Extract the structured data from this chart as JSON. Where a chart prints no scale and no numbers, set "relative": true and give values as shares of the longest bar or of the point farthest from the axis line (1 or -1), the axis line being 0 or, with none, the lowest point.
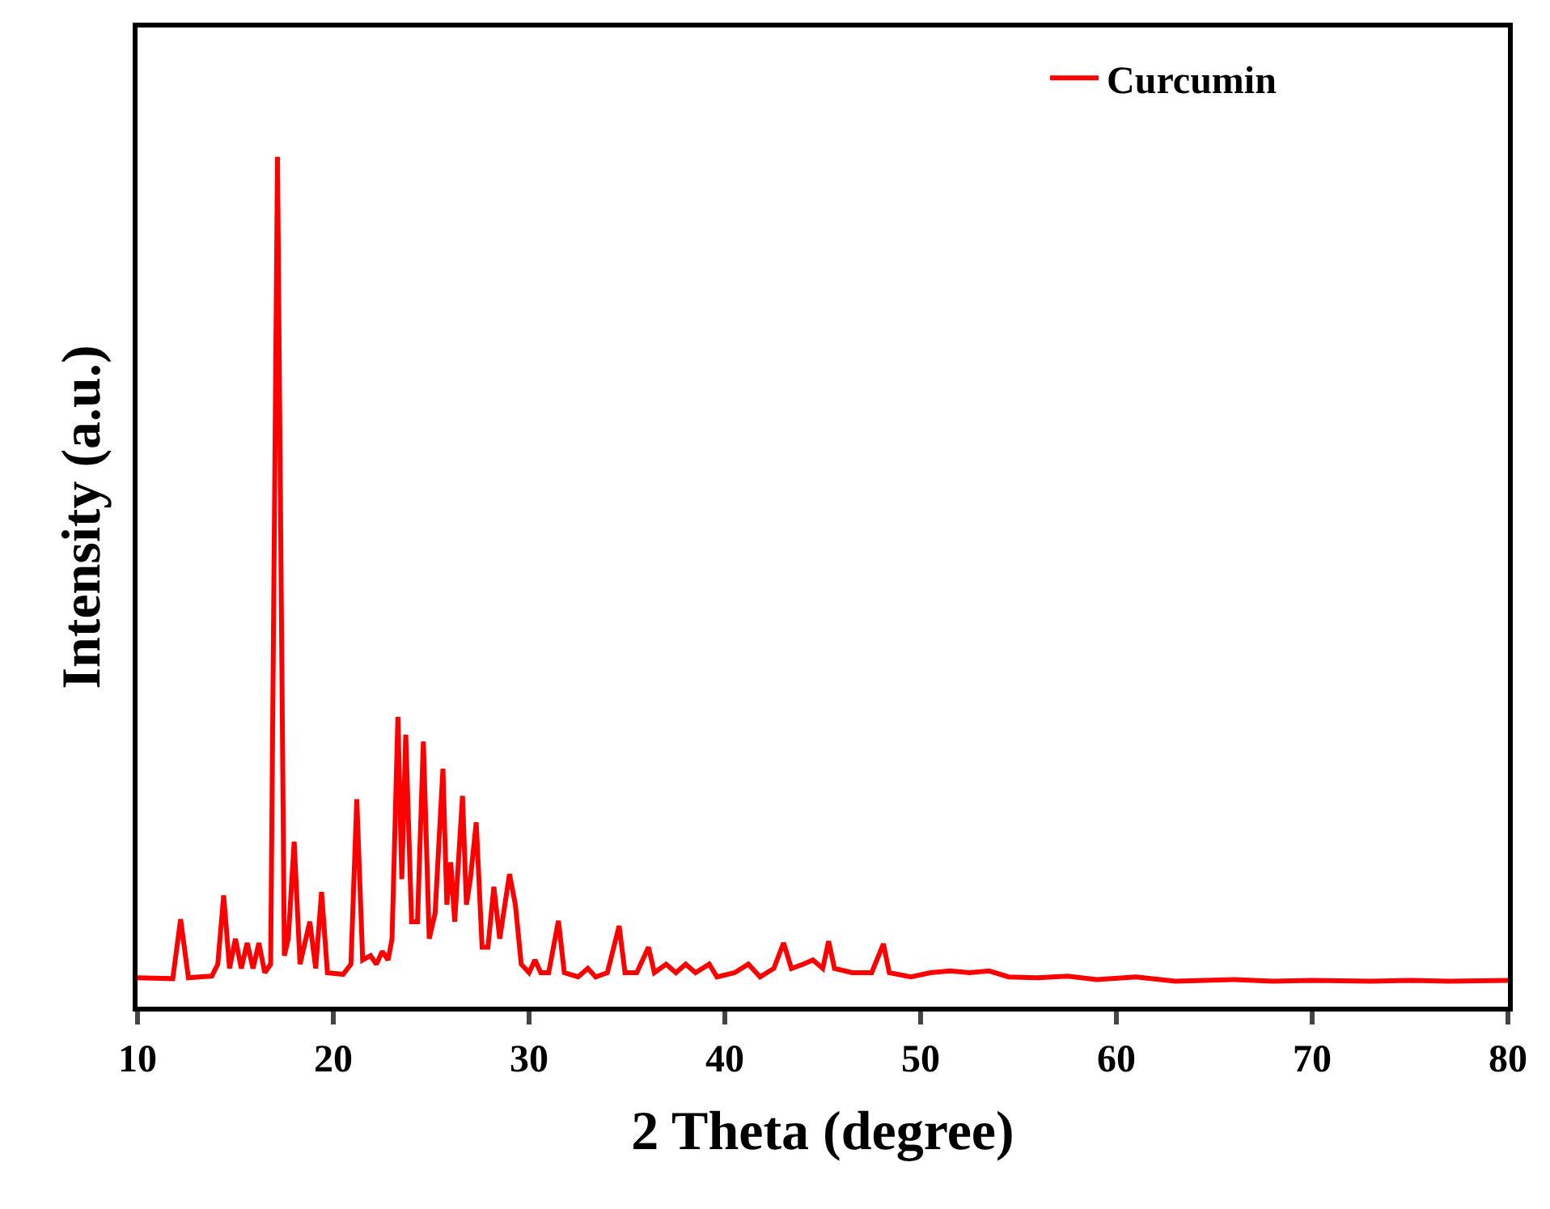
{
  "chart_data": {
    "type": "line",
    "relative": true,
    "xlabel": "2 Theta (degree)",
    "ylabel": "Intensity (a.u.)",
    "xlim": [
      10,
      80
    ],
    "xticks": [
      10,
      20,
      30,
      40,
      50,
      60,
      70,
      80
    ],
    "legend": "top right",
    "marker": "none",
    "line_style": "solid",
    "series": [
      {
        "name": "Curcumin",
        "color": "#ff0000",
        "x": [
          10,
          11.8,
          12.2,
          12.6,
          13.8,
          14.1,
          14.4,
          14.7,
          15.0,
          15.3,
          15.6,
          15.9,
          16.2,
          16.5,
          16.8,
          17.15,
          17.5,
          17.7,
          18.0,
          18.3,
          18.8,
          19.1,
          19.4,
          19.7,
          20.5,
          20.9,
          21.2,
          21.5,
          21.9,
          22.2,
          22.5,
          22.8,
          23.0,
          23.3,
          23.5,
          23.7,
          24.0,
          24.3,
          24.6,
          24.9,
          25.2,
          25.6,
          25.8,
          26.0,
          26.2,
          26.6,
          26.8,
          27.0,
          27.3,
          27.6,
          27.9,
          28.2,
          28.5,
          29.0,
          29.3,
          29.6,
          30.0,
          30.3,
          30.6,
          31.0,
          31.5,
          31.8,
          32.5,
          33.0,
          33.4,
          34.0,
          34.6,
          34.9,
          35.5,
          36.1,
          36.4,
          37.0,
          37.5,
          38.0,
          38.5,
          39.2,
          39.6,
          40.5,
          41.2,
          41.8,
          42.5,
          43.0,
          43.4,
          44.0,
          44.5,
          45.0,
          45.3,
          45.6,
          46.5,
          47.5,
          48.1,
          48.4,
          49.5,
          50.5,
          51.5,
          52.5,
          53.5,
          54.5,
          56,
          57.5,
          59,
          61,
          63,
          66,
          68,
          70,
          73,
          75,
          77,
          80
        ],
        "values": [
          0.034,
          0.033,
          0.103,
          0.034,
          0.036,
          0.05,
          0.131,
          0.045,
          0.08,
          0.045,
          0.075,
          0.045,
          0.075,
          0.04,
          0.05,
          1.0,
          0.06,
          0.08,
          0.194,
          0.05,
          0.1,
          0.045,
          0.135,
          0.04,
          0.038,
          0.05,
          0.244,
          0.055,
          0.06,
          0.05,
          0.065,
          0.055,
          0.08,
          0.341,
          0.15,
          0.32,
          0.1,
          0.1,
          0.312,
          0.08,
          0.11,
          0.28,
          0.12,
          0.17,
          0.1,
          0.248,
          0.12,
          0.15,
          0.217,
          0.07,
          0.07,
          0.141,
          0.08,
          0.156,
          0.12,
          0.05,
          0.04,
          0.055,
          0.04,
          0.04,
          0.101,
          0.04,
          0.035,
          0.045,
          0.035,
          0.04,
          0.095,
          0.04,
          0.04,
          0.07,
          0.04,
          0.05,
          0.04,
          0.05,
          0.04,
          0.05,
          0.035,
          0.04,
          0.05,
          0.035,
          0.045,
          0.075,
          0.045,
          0.05,
          0.055,
          0.045,
          0.077,
          0.045,
          0.04,
          0.04,
          0.074,
          0.04,
          0.035,
          0.04,
          0.042,
          0.04,
          0.042,
          0.035,
          0.034,
          0.036,
          0.032,
          0.035,
          0.03,
          0.032,
          0.03,
          0.031,
          0.03,
          0.031,
          0.03,
          0.031
        ]
      }
    ]
  }
}
